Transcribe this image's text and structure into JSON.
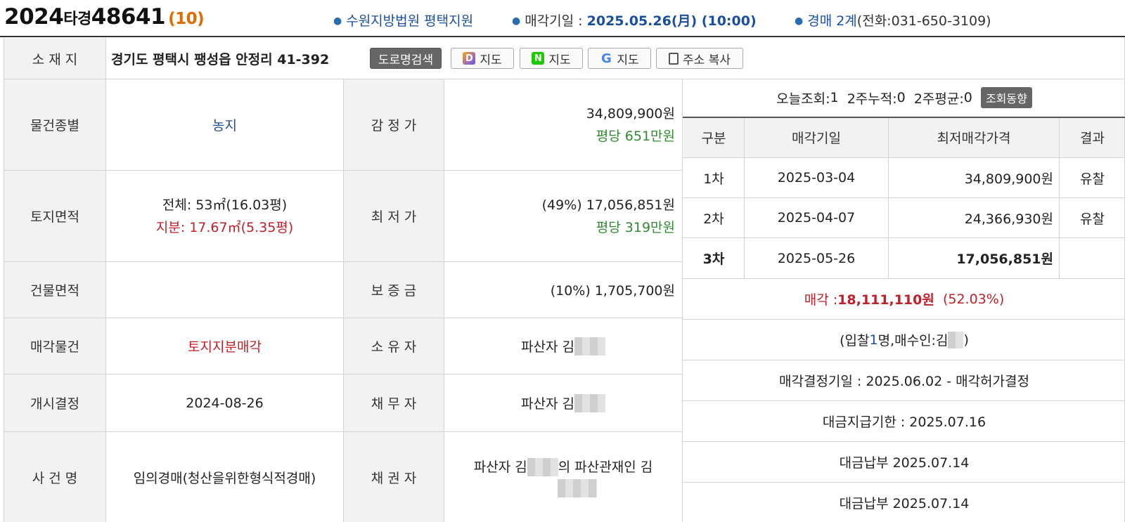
{
  "header": {
    "case_prefix": "2024",
    "case_kind": "타경",
    "case_num": "48641",
    "case_count": "(10)",
    "court": "수원지방법원 평택지원",
    "sale_date_label": "매각기일 : ",
    "sale_date": "2025.05.26(月) (10:00)",
    "dept": "경매 2계",
    "phone": "(전화:031-650-3109)"
  },
  "address": {
    "label": "소 재 지",
    "value": "경기도 평택시 팽성읍 안정리 41-392",
    "road_search": "도로명검색",
    "daum_map": "지도",
    "naver_map": "지도",
    "google_map": "지도",
    "copy": "주소 복사"
  },
  "rows": {
    "type_label": "물건종별",
    "type_value": "농지",
    "appraisal_label": "감 정 가",
    "appraisal_value": "34,809,900원",
    "appraisal_per": "평당 651만원",
    "land_label": "토지면적",
    "land_total": "전체: 53㎡(16.03평)",
    "land_share": "지분: 17.67㎡(5.35평)",
    "min_label": "최 저 가",
    "min_value": "(49%) 17,056,851원",
    "min_per": "평당 319만원",
    "building_label": "건물면적",
    "deposit_label": "보 증 금",
    "deposit_value": "(10%) 1,705,700원",
    "sale_item_label": "매각물건",
    "sale_item_value": "토지지분매각",
    "owner_label": "소 유 자",
    "owner_value": "파산자 김",
    "open_label": "개시결정",
    "open_value": "2024-08-26",
    "debtor_label": "채 무 자",
    "debtor_value": "파산자 김",
    "case_name_label": "사 건 명",
    "case_name_value": "임의경매(청산을위한형식적경매)",
    "creditor_label": "채 권 자",
    "creditor_value_a": "파산자 김",
    "creditor_value_b": "의 파산관재인 김"
  },
  "stats": {
    "today_label": "오늘조회: ",
    "today": "1",
    "two_week_label": "2주누적: ",
    "two_week": "0",
    "two_week_avg_label": "2주평균: ",
    "two_week_avg": "0",
    "trend_button": "조회동향"
  },
  "history": {
    "headers": [
      "구분",
      "매각기일",
      "최저매각가격",
      "결과"
    ],
    "rows": [
      {
        "round": "1차",
        "date": "2025-03-04",
        "price": "34,809,900원",
        "result": "유찰"
      },
      {
        "round": "2차",
        "date": "2025-04-07",
        "price": "24,366,930원",
        "result": "유찰"
      },
      {
        "round": "3차",
        "date": "2025-05-26",
        "price": "17,056,851원",
        "result": ""
      }
    ]
  },
  "result": {
    "sale_label": "매각 : ",
    "sale_amount": "18,111,110원",
    "sale_ratio": "(52.03%)",
    "bid_a": "(입찰",
    "bid_count": "1",
    "bid_b": "명,매수인:김",
    "bid_c": ")",
    "decision": "매각결정기일 : 2025.06.02 - 매각허가결정",
    "due": "대금지급기한 : 2025.07.16",
    "paid1": "대금납부 2025.07.14",
    "paid2": "대금납부 2025.07.14"
  },
  "colors": {
    "accent": "#e06c00",
    "link": "#1a4fa0",
    "green": "#2e8b2e",
    "red": "#c0202a"
  }
}
